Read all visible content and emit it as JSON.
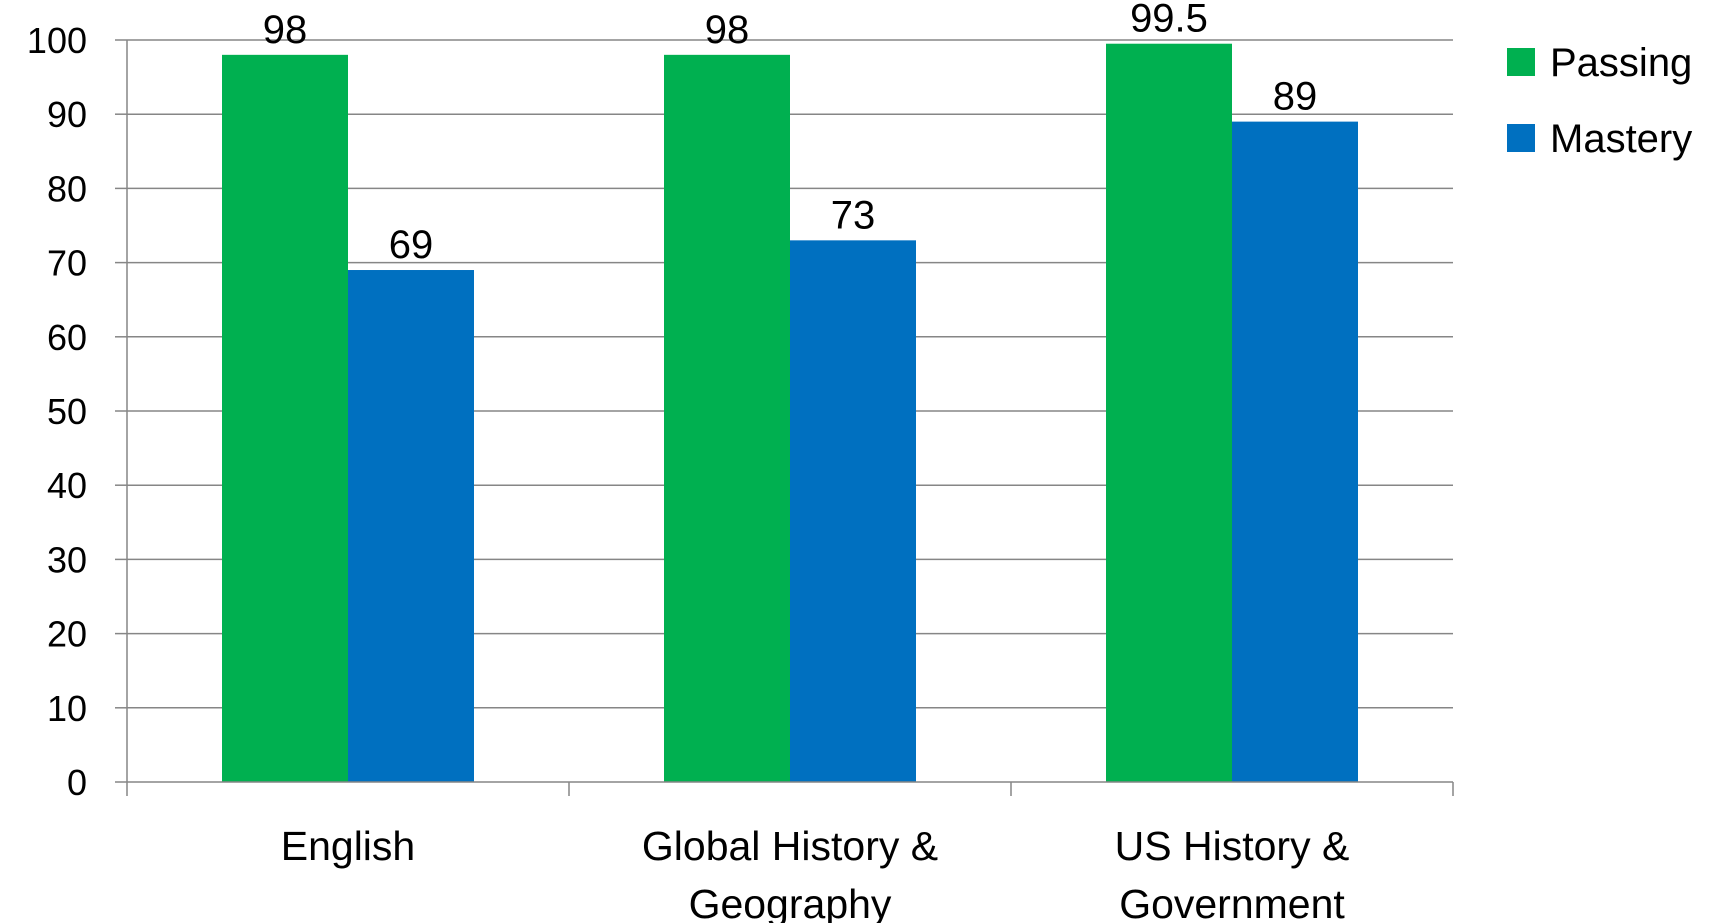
{
  "chart_data": {
    "type": "bar",
    "title": "",
    "xlabel": "",
    "ylabel": "",
    "ylim": [
      0,
      100
    ],
    "yticks": [
      0,
      10,
      20,
      30,
      40,
      50,
      60,
      70,
      80,
      90,
      100
    ],
    "grid": true,
    "legend_position": "right-top",
    "categories": [
      [
        "English"
      ],
      [
        "Global History &",
        "Geography"
      ],
      [
        "US History &",
        "Government"
      ]
    ],
    "series": [
      {
        "name": "Passing",
        "color": "#00B050",
        "values": [
          98,
          98,
          99.5
        ]
      },
      {
        "name": "Mastery",
        "color": "#0070C0",
        "values": [
          69,
          73,
          89
        ]
      }
    ]
  }
}
